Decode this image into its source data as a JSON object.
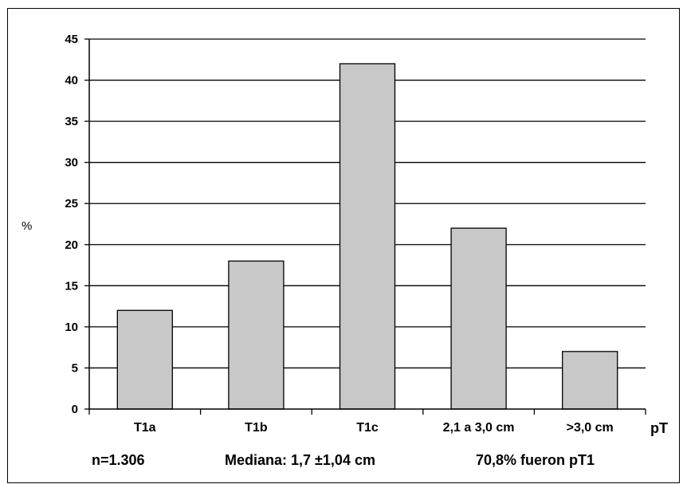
{
  "chart_data": {
    "type": "bar",
    "categories": [
      "T1a",
      "T1b",
      "T1c",
      "2,1 a 3,0 cm",
      ">3,0 cm"
    ],
    "values": [
      12,
      18,
      42,
      22,
      7
    ],
    "ylabel": "%",
    "xlabel": "pT",
    "ylim": [
      0,
      45
    ],
    "yticks": [
      0,
      5,
      10,
      15,
      20,
      25,
      30,
      35,
      40,
      45
    ],
    "grid": true,
    "bar_color": "#c8c8c8"
  },
  "footer": {
    "n": "n=1.306",
    "median": "Mediana: 1,7  ±1,04 cm",
    "pct": "70,8% fueron pT1"
  }
}
